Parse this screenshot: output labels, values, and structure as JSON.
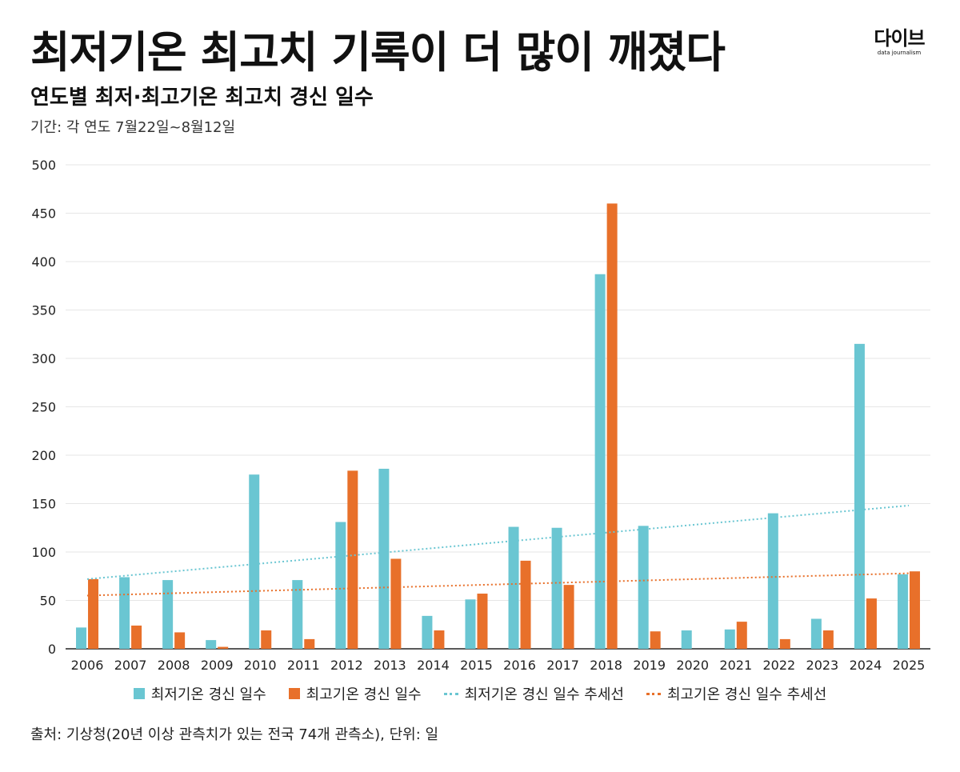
{
  "header": {
    "title": "최저기온 최고치 기록이 더 많이 깨졌다",
    "subtitle": "연도별 최저·최고기온 최고치 경신 일수",
    "period": "기간: 각 연도 7월22일~8월12일"
  },
  "logo": {
    "main": "다이브",
    "sub": "data journalism"
  },
  "footer": {
    "source": "출처: 기상청(20년 이상 관측치가 있는 전국 74개 관측소), 단위: 일"
  },
  "colors": {
    "min_series": "#6ac6d2",
    "max_series": "#e8702a",
    "grid": "#e6e6e6",
    "axis": "#222222"
  },
  "chart_data": {
    "type": "bar",
    "categories": [
      "2006",
      "2007",
      "2008",
      "2009",
      "2010",
      "2011",
      "2012",
      "2013",
      "2014",
      "2015",
      "2016",
      "2017",
      "2018",
      "2019",
      "2020",
      "2021",
      "2022",
      "2023",
      "2024",
      "2025"
    ],
    "series": [
      {
        "name": "최저기온 경신 일수",
        "color": "#6ac6d2",
        "values": [
          22,
          74,
          71,
          9,
          180,
          71,
          131,
          186,
          34,
          51,
          126,
          125,
          387,
          127,
          19,
          20,
          140,
          31,
          315,
          77
        ]
      },
      {
        "name": "최고기온 경신 일수",
        "color": "#e8702a",
        "values": [
          72,
          24,
          17,
          2,
          19,
          10,
          184,
          93,
          19,
          57,
          91,
          66,
          460,
          18,
          0,
          28,
          10,
          19,
          52,
          80
        ]
      }
    ],
    "trendlines": [
      {
        "name": "최저기온 경신 일수 추세선",
        "color": "#6ac6d2",
        "start": 72,
        "end": 148
      },
      {
        "name": "최고기온 경신 일수 추세선",
        "color": "#e8702a",
        "start": 55,
        "end": 78
      }
    ],
    "yticks": [
      0,
      50,
      100,
      150,
      200,
      250,
      300,
      350,
      400,
      450,
      500
    ],
    "ylim": [
      0,
      500
    ],
    "grid": true,
    "legend_position": "bottom"
  }
}
